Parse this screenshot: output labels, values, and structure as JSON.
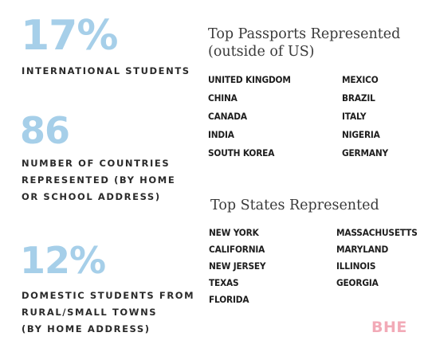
{
  "stats": {
    "international": {
      "value": "17%",
      "label_lines": [
        "INTERNATIONAL STUDENTS"
      ]
    },
    "countries": {
      "value": "86",
      "label_lines": [
        "NUMBER OF COUNTRIES",
        "REPRESENTED (BY HOME",
        "OR SCHOOL ADDRESS)"
      ]
    },
    "rural": {
      "value": "12%",
      "label_lines": [
        "DOMESTIC STUDENTS FROM",
        "RURAL/SMALL TOWNS",
        "(BY HOME ADDRESS)"
      ]
    }
  },
  "passports": {
    "heading_lines": [
      "Top Passports Represented",
      "(outside of US)"
    ],
    "col1": [
      "UNITED KINGDOM",
      "CHINA",
      "CANADA",
      "INDIA",
      "SOUTH KOREA"
    ],
    "col2": [
      "MEXICO",
      "BRAZIL",
      "ITALY",
      "NIGERIA",
      "GERMANY"
    ]
  },
  "states": {
    "heading": "Top States Represented",
    "col1": [
      "NEW YORK",
      "CALIFORNIA",
      "NEW JERSEY",
      "TEXAS",
      "FLORIDA"
    ],
    "col2": [
      "MASSACHUSETTS",
      "MARYLAND",
      "ILLINOIS",
      "GEORGIA"
    ]
  },
  "logo": {
    "text": "BHE"
  },
  "colors": {
    "stat_blue": "#a6cfe9",
    "logo_pink": "#f2aab7",
    "text_dark": "#1d1d1d"
  }
}
